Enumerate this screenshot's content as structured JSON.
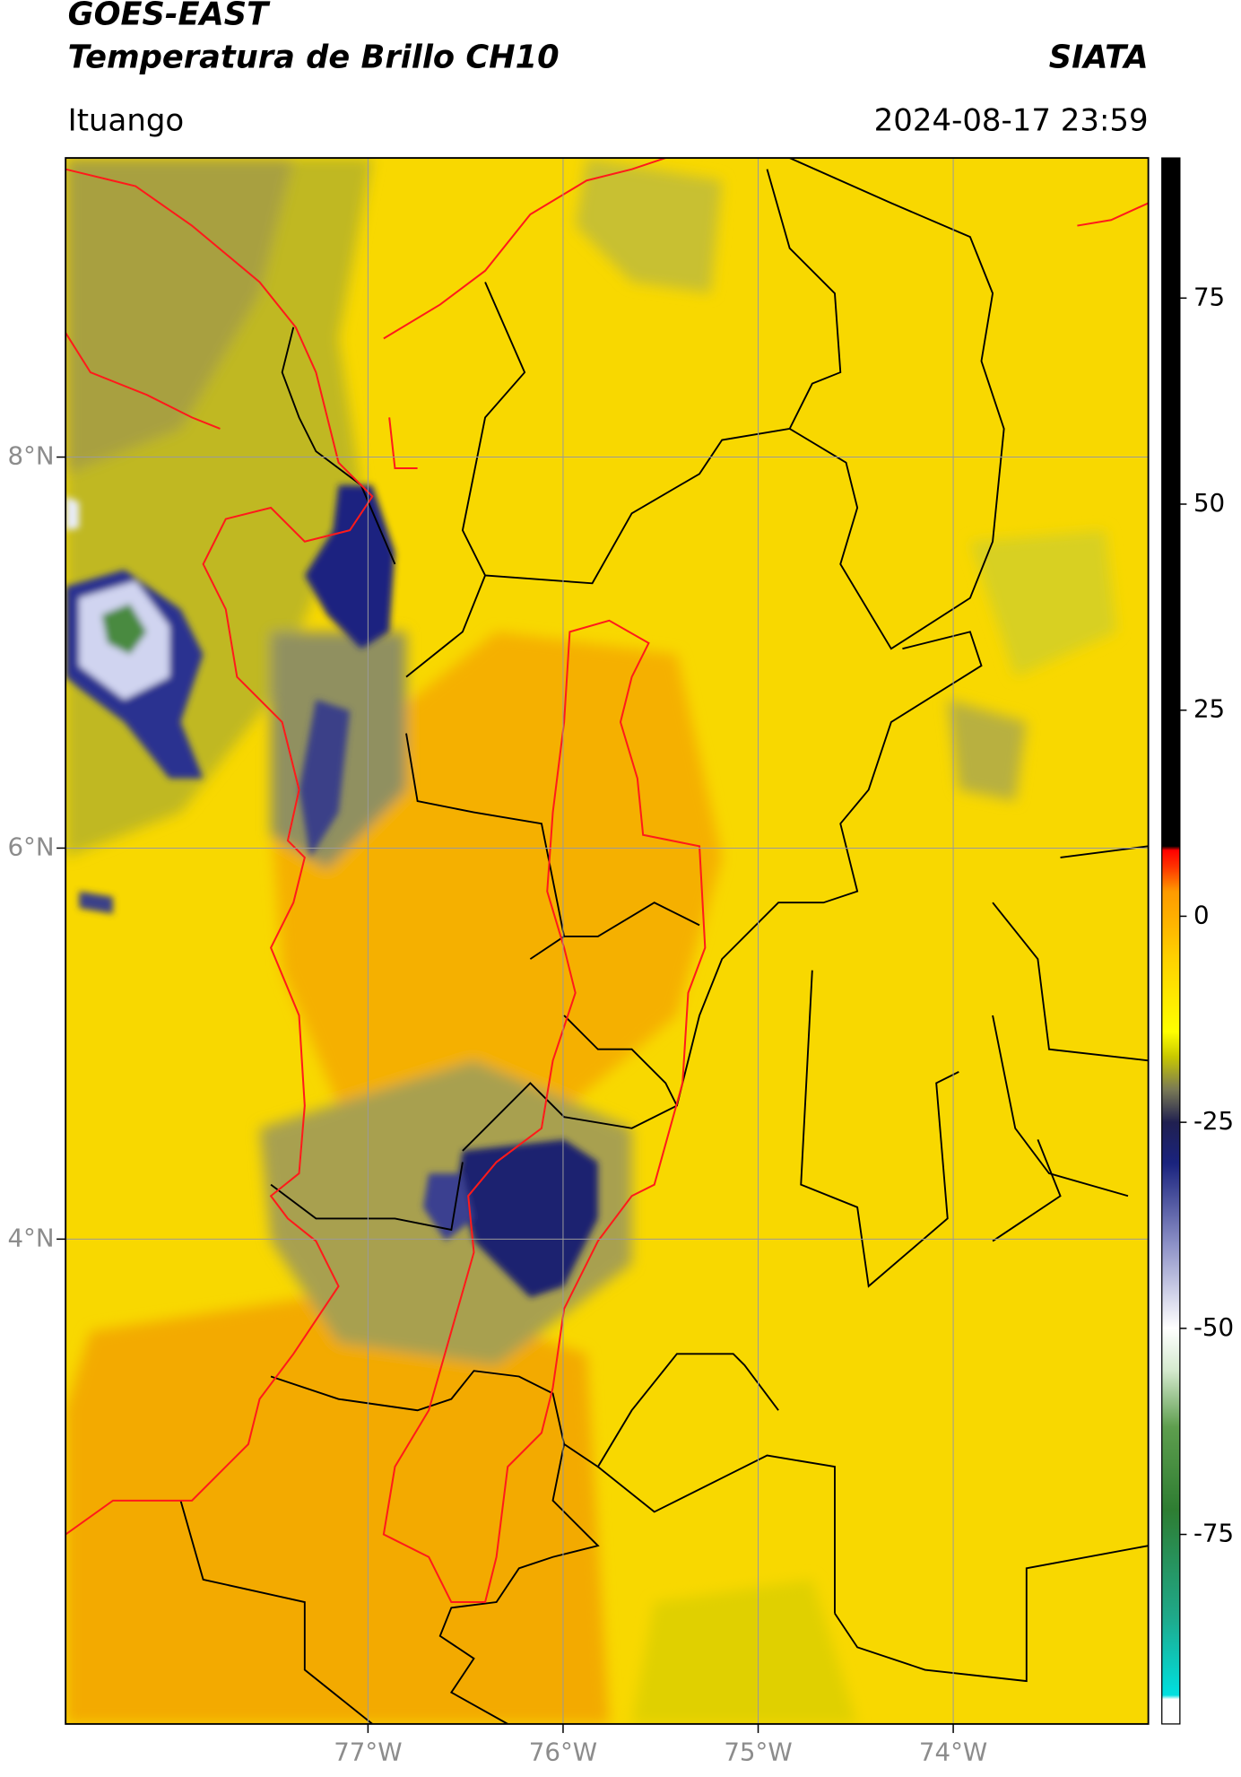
{
  "header": {
    "title": "GOES-EAST",
    "subtitle": "Temperatura de Brillo CH10",
    "source": "SIATA",
    "region": "Ituango",
    "datetime": "2024-08-17 23:59"
  },
  "map": {
    "xlim": [
      -78.55,
      -73.0
    ],
    "ylim": [
      1.52,
      9.53
    ],
    "xticks": [
      {
        "value": -77,
        "label": "77°W"
      },
      {
        "value": -76,
        "label": "76°W"
      },
      {
        "value": -75,
        "label": "75°W"
      },
      {
        "value": -74,
        "label": "74°W"
      }
    ],
    "yticks": [
      {
        "value": 8,
        "label": "8°N"
      },
      {
        "value": 6,
        "label": "6°N"
      },
      {
        "value": 4,
        "label": "4°N"
      }
    ],
    "grid": true,
    "grid_color": "#9a9a9a"
  },
  "colorbar": {
    "lim": [
      -98,
      92
    ],
    "ticks": [
      75,
      50,
      25,
      0,
      -25,
      -50,
      -75
    ],
    "stops": [
      {
        "value": -98,
        "color": "#ffffff"
      },
      {
        "value": -95,
        "color": "#ffffff"
      },
      {
        "value": -94.5,
        "color": "#00e0e0"
      },
      {
        "value": -85,
        "color": "#1fa98a"
      },
      {
        "value": -72,
        "color": "#2e7d32"
      },
      {
        "value": -62,
        "color": "#5e9e4e"
      },
      {
        "value": -55,
        "color": "#d6ead0"
      },
      {
        "value": -50,
        "color": "#ffffff"
      },
      {
        "value": -40,
        "color": "#8f93c8"
      },
      {
        "value": -30,
        "color": "#1a237e"
      },
      {
        "value": -25,
        "color": "#202050"
      },
      {
        "value": -21,
        "color": "#7a7a55"
      },
      {
        "value": -17,
        "color": "#c9c900"
      },
      {
        "value": -14,
        "color": "#ffff00"
      },
      {
        "value": -5,
        "color": "#ffd000"
      },
      {
        "value": 3,
        "color": "#ff9a00"
      },
      {
        "value": 6,
        "color": "#ff3300"
      },
      {
        "value": 8,
        "color": "#ff0000"
      },
      {
        "value": 8.5,
        "color": "#000000"
      },
      {
        "value": 92,
        "color": "#000000"
      }
    ]
  }
}
